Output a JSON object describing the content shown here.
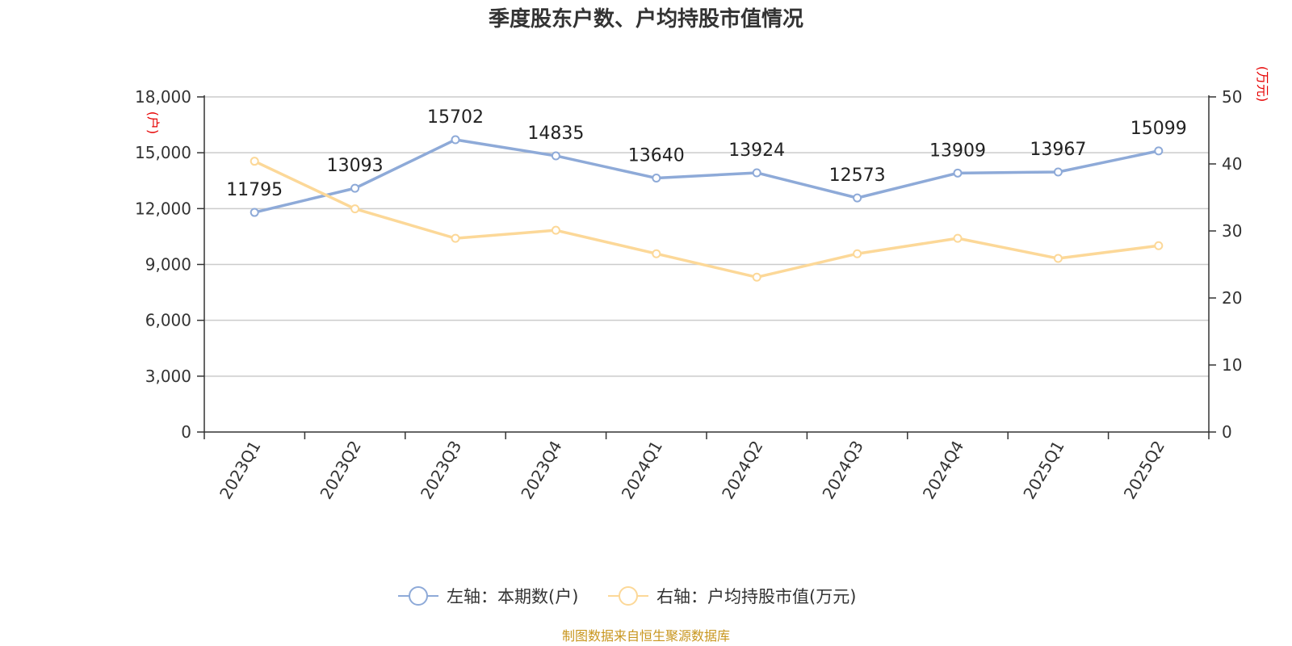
{
  "chart_data": {
    "type": "line",
    "title": "季度股东户数、户均持股市值情况",
    "categories": [
      "2023Q1",
      "2023Q2",
      "2023Q3",
      "2023Q4",
      "2024Q1",
      "2024Q2",
      "2024Q3",
      "2024Q4",
      "2025Q1",
      "2025Q2"
    ],
    "left_axis": {
      "unit": "(户)",
      "ylim": [
        0,
        18000
      ],
      "ticks": [
        "0",
        "3,000",
        "6,000",
        "9,000",
        "12,000",
        "15,000",
        "18,000"
      ]
    },
    "right_axis": {
      "unit": "(万元)",
      "ylim": [
        0,
        50
      ],
      "ticks": [
        "0",
        "10",
        "20",
        "30",
        "40",
        "50"
      ]
    },
    "series": [
      {
        "name": "左轴：本期数(户)",
        "axis": "left",
        "color": "#8eaad8",
        "values": [
          11795,
          13093,
          15702,
          14835,
          13640,
          13924,
          12573,
          13909,
          13967,
          15099
        ],
        "labels": [
          "11795",
          "13093",
          "15702",
          "14835",
          "13640",
          "13924",
          "12573",
          "13909",
          "13967",
          "15099"
        ]
      },
      {
        "name": "右轴：户均持股市值(万元)",
        "axis": "right",
        "color": "#fcd898",
        "values": [
          40.4,
          33.3,
          28.9,
          30.1,
          26.6,
          23.1,
          26.6,
          28.9,
          25.9,
          27.8
        ]
      }
    ],
    "grid": true,
    "legend_position": "bottom-center",
    "source": "制图数据来自恒生聚源数据库"
  }
}
